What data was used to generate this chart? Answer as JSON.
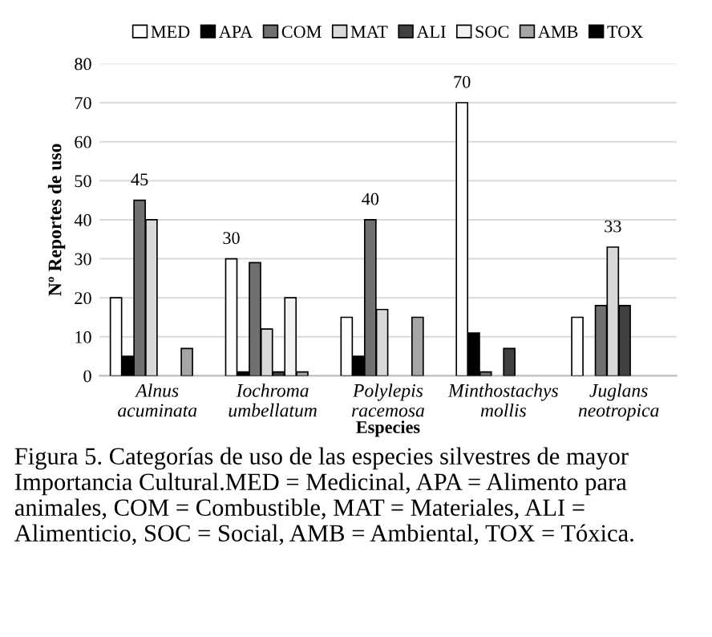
{
  "chart_data": {
    "type": "bar",
    "xlabel": "Especies",
    "ylabel": "Nº Reportes de uso",
    "categories": [
      "Alnus\nacuminata",
      "Iochroma\numbellatum",
      "Polylepis\nracemosa",
      "Minthostachys\nmollis",
      "Juglans\nneotropica"
    ],
    "series": [
      {
        "name": "MED",
        "color": "#ffffff",
        "values": [
          20,
          30,
          15,
          70,
          15
        ],
        "value_labels": [
          null,
          "30",
          null,
          "70",
          null
        ]
      },
      {
        "name": "APA",
        "color": "#000000",
        "values": [
          5,
          1,
          5,
          11,
          0
        ]
      },
      {
        "name": "COM",
        "color": "#707070",
        "values": [
          45,
          29,
          40,
          1,
          18
        ],
        "value_labels": [
          "45",
          null,
          "40",
          null,
          null
        ]
      },
      {
        "name": "MAT",
        "color": "#d9d9d9",
        "values": [
          40,
          12,
          17,
          0,
          33
        ],
        "value_labels": [
          null,
          null,
          null,
          null,
          "33"
        ]
      },
      {
        "name": "ALI",
        "color": "#404040",
        "values": [
          0,
          1,
          0,
          7,
          18
        ]
      },
      {
        "name": "SOC",
        "color": "#f2f2f2",
        "values": [
          0,
          20,
          0,
          0,
          0
        ]
      },
      {
        "name": "AMB",
        "color": "#a6a6a6",
        "values": [
          7,
          1,
          15,
          0,
          0
        ]
      },
      {
        "name": "TOX",
        "color": "#000000",
        "values": [
          0,
          0,
          0,
          0,
          0
        ]
      }
    ],
    "ylim": [
      0,
      80
    ],
    "yticks": [
      0,
      10,
      20,
      30,
      40,
      50,
      60,
      70,
      80
    ],
    "grid": "y",
    "legend": "top",
    "annotations": [
      "Figura 5. Categorías de uso de las especies silvestres de mayor Importancia Cultural.MED = Medicinal, APA = Alimento para animales, COM = Combustible, MAT = Materiales, ALI = Alimenticio, SOC = Social, AMB = Ambiental, TOX = Tóxica."
    ]
  }
}
